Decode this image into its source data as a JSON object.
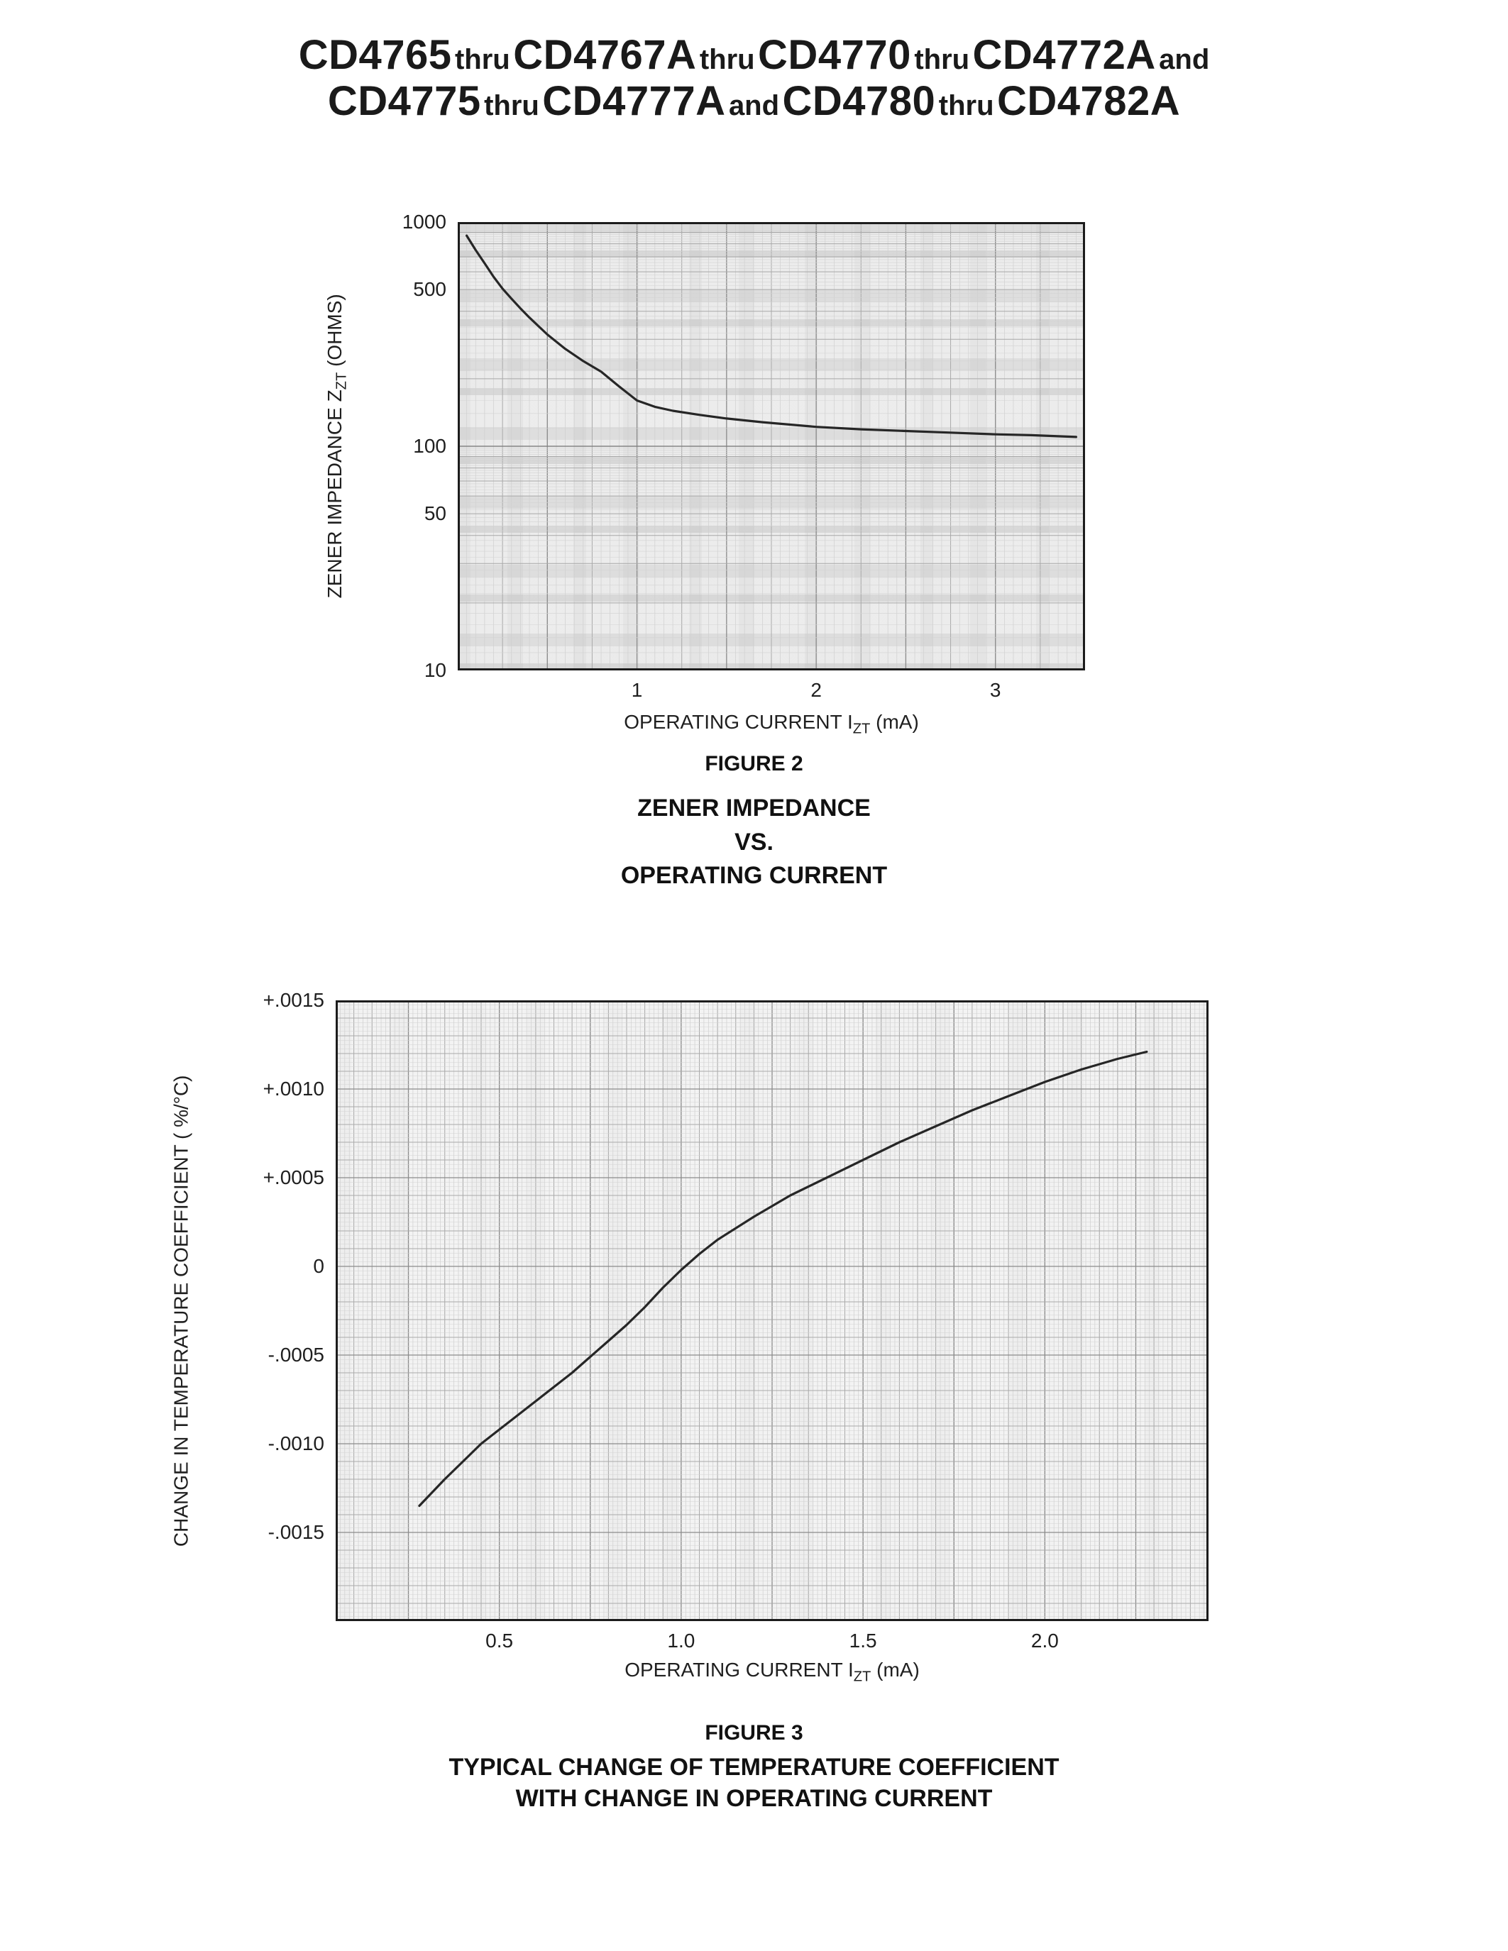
{
  "page": {
    "title": {
      "line1": [
        "CD4765",
        "thru",
        "CD4767A",
        "thru",
        "CD4770",
        "thru",
        "CD4772A",
        "and"
      ],
      "line2": [
        "CD4775",
        "thru",
        "CD4777A",
        "and",
        "CD4780",
        "thru",
        "CD4782A"
      ]
    },
    "background": "#ffffff",
    "ink": "#1a1a1a",
    "curve_color": "#262626"
  },
  "chart_data": [
    {
      "id": "fig2",
      "type": "line",
      "figure_label": "FIGURE 2",
      "caption_lines": [
        "ZENER IMPEDANCE",
        "VS.",
        "OPERATING CURRENT"
      ],
      "xlabel": {
        "pre": "OPERATING CURRENT I",
        "sub": "ZT",
        "post": " (mA)"
      },
      "ylabel": {
        "pre": "ZENER IMPEDANCE Z",
        "sub": "ZT",
        "post": " (OHMS)"
      },
      "x_scale": "linear",
      "y_scale": "log",
      "xlim": [
        0,
        3.5
      ],
      "ylim": [
        10,
        1000
      ],
      "x_ticks": [
        {
          "v": 1,
          "label": "1"
        },
        {
          "v": 2,
          "label": "2"
        },
        {
          "v": 3,
          "label": "3"
        }
      ],
      "y_ticks": [
        {
          "v": 1000,
          "label": "1000"
        },
        {
          "v": 500,
          "label": "500"
        },
        {
          "v": 100,
          "label": "100"
        },
        {
          "v": 50,
          "label": "50"
        },
        {
          "v": 10,
          "label": "10"
        }
      ],
      "grid": {
        "on": true,
        "x_minor": 0.05,
        "x_medium": 0.25,
        "x_major": 0.5
      },
      "series": [
        {
          "name": "zener-impedance",
          "points": [
            [
              0.05,
              870
            ],
            [
              0.1,
              750
            ],
            [
              0.15,
              655
            ],
            [
              0.2,
              570
            ],
            [
              0.25,
              505
            ],
            [
              0.3,
              455
            ],
            [
              0.35,
              412
            ],
            [
              0.4,
              375
            ],
            [
              0.5,
              315
            ],
            [
              0.6,
              272
            ],
            [
              0.7,
              240
            ],
            [
              0.8,
              215
            ],
            [
              0.9,
              185
            ],
            [
              1.0,
              160
            ],
            [
              1.1,
              150
            ],
            [
              1.2,
              144
            ],
            [
              1.35,
              138
            ],
            [
              1.5,
              133
            ],
            [
              1.7,
              128
            ],
            [
              2.0,
              122
            ],
            [
              2.25,
              119
            ],
            [
              2.5,
              117
            ],
            [
              2.75,
              115
            ],
            [
              3.0,
              113
            ],
            [
              3.2,
              112
            ],
            [
              3.45,
              110
            ]
          ]
        }
      ]
    },
    {
      "id": "fig3",
      "type": "line",
      "figure_label": "FIGURE 3",
      "caption_lines": [
        "TYPICAL CHANGE OF TEMPERATURE COEFFICIENT",
        "WITH CHANGE IN OPERATING CURRENT"
      ],
      "xlabel": {
        "pre": "OPERATING CURRENT I",
        "sub": "ZT",
        "post": " (mA)"
      },
      "ylabel": {
        "pre": "CHANGE IN TEMPERATURE COEFFICIENT ( %/°C)",
        "sub": "",
        "post": ""
      },
      "x_scale": "linear",
      "y_scale": "linear",
      "xlim": [
        0.05,
        2.45
      ],
      "ylim": [
        -0.002,
        0.0015
      ],
      "x_ticks": [
        {
          "v": 0.5,
          "label": "0.5"
        },
        {
          "v": 1.0,
          "label": "1.0"
        },
        {
          "v": 1.5,
          "label": "1.5"
        },
        {
          "v": 2.0,
          "label": "2.0"
        }
      ],
      "y_ticks": [
        {
          "v": 0.0015,
          "label": "+.0015"
        },
        {
          "v": 0.001,
          "label": "+.0010"
        },
        {
          "v": 0.0005,
          "label": "+.0005"
        },
        {
          "v": 0,
          "label": "0"
        },
        {
          "v": -0.0005,
          "label": "-.0005"
        },
        {
          "v": -0.001,
          "label": "-.0010"
        },
        {
          "v": -0.0015,
          "label": "-.0015"
        }
      ],
      "grid": {
        "on": true,
        "x_minor": 0.0125,
        "x_medium": 0.05,
        "x_major": 0.25,
        "y_minor": 2.5e-05,
        "y_medium": 0.0001,
        "y_major": 0.0005
      },
      "series": [
        {
          "name": "temp-coefficient-change",
          "points": [
            [
              0.28,
              -0.00135
            ],
            [
              0.35,
              -0.0012
            ],
            [
              0.4,
              -0.0011
            ],
            [
              0.45,
              -0.001
            ],
            [
              0.5,
              -0.00092
            ],
            [
              0.55,
              -0.00084
            ],
            [
              0.6,
              -0.00076
            ],
            [
              0.65,
              -0.00068
            ],
            [
              0.7,
              -0.0006
            ],
            [
              0.75,
              -0.00051
            ],
            [
              0.8,
              -0.00042
            ],
            [
              0.85,
              -0.00033
            ],
            [
              0.9,
              -0.00023
            ],
            [
              0.95,
              -0.00012
            ],
            [
              1.0,
              -2e-05
            ],
            [
              1.05,
              7e-05
            ],
            [
              1.1,
              0.00015
            ],
            [
              1.2,
              0.00028
            ],
            [
              1.3,
              0.0004
            ],
            [
              1.4,
              0.0005
            ],
            [
              1.5,
              0.0006
            ],
            [
              1.6,
              0.0007
            ],
            [
              1.7,
              0.00079
            ],
            [
              1.8,
              0.00088
            ],
            [
              1.9,
              0.00096
            ],
            [
              2.0,
              0.00104
            ],
            [
              2.1,
              0.00111
            ],
            [
              2.2,
              0.00117
            ],
            [
              2.28,
              0.00121
            ]
          ]
        }
      ]
    }
  ]
}
